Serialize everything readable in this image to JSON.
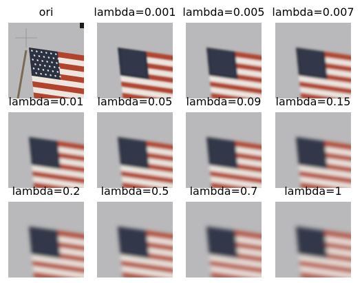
{
  "figure": {
    "panels": [
      {
        "label": "ori",
        "lambda": null,
        "blur": 0
      },
      {
        "label": "lambda=0.001",
        "lambda": 0.001,
        "blur": 1.2
      },
      {
        "label": "lambda=0.005",
        "lambda": 0.005,
        "blur": 1.6
      },
      {
        "label": "lambda=0.007",
        "lambda": 0.007,
        "blur": 1.8
      },
      {
        "label": "lambda=0.01",
        "lambda": 0.01,
        "blur": 2.0
      },
      {
        "label": "lambda=0.05",
        "lambda": 0.05,
        "blur": 2.1
      },
      {
        "label": "lambda=0.09",
        "lambda": 0.09,
        "blur": 2.4
      },
      {
        "label": "lambda=0.15",
        "lambda": 0.15,
        "blur": 2.6
      },
      {
        "label": "lambda=0.2",
        "lambda": 0.2,
        "blur": 2.8
      },
      {
        "label": "lambda=0.5",
        "lambda": 0.5,
        "blur": 3.0
      },
      {
        "label": "lambda=0.7",
        "lambda": 0.7,
        "blur": 3.2
      },
      {
        "label": "lambda=1",
        "lambda": 1,
        "blur": 3.4
      }
    ],
    "colors": {
      "background": "#b9b9bb",
      "stripe_red": "#b2442e",
      "stripe_white": "#ece6df",
      "canton": "#2c3240",
      "star": "#d8dde6"
    }
  }
}
